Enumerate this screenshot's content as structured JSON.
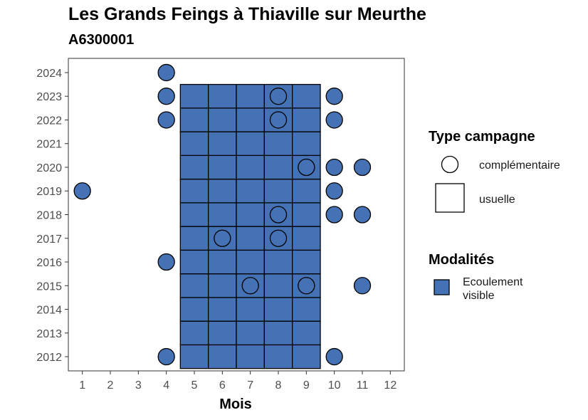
{
  "chart_data": {
    "type": "scatter",
    "title": "Les Grands Feings à Thiaville sur Meurthe",
    "subtitle": "A6300001",
    "xlabel": "Mois",
    "ylabel": "",
    "x_ticks": [
      1,
      2,
      3,
      4,
      5,
      6,
      7,
      8,
      9,
      10,
      11,
      12
    ],
    "y_ticks": [
      2012,
      2013,
      2014,
      2015,
      2016,
      2017,
      2018,
      2019,
      2020,
      2021,
      2022,
      2023,
      2024
    ],
    "xlim": [
      0.5,
      12.5
    ],
    "ylim": [
      2011.4,
      2024.6
    ],
    "grid": false,
    "fill_color": "#4472B4",
    "legends": [
      {
        "title": "Type campagne",
        "entries": [
          {
            "label": "complémentaire",
            "shape": "circle"
          },
          {
            "label": "usuelle",
            "shape": "square"
          }
        ]
      },
      {
        "title": "Modalités",
        "entries": [
          {
            "label": "Ecoulement visible",
            "label_lines": [
              "Ecoulement",
              "visible"
            ],
            "shape": "square",
            "color": "#4472B4"
          }
        ]
      }
    ],
    "legend_position": "right",
    "series": [
      {
        "name": "usuelle",
        "shape": "square",
        "modalite": "Ecoulement visible",
        "x_range": [
          5,
          9
        ],
        "y_range": [
          2012,
          2023
        ]
      },
      {
        "name": "complémentaire",
        "shape": "circle",
        "points": [
          {
            "x": 4,
            "y": 2024,
            "filled": true
          },
          {
            "x": 4,
            "y": 2023,
            "filled": true
          },
          {
            "x": 8,
            "y": 2023,
            "filled": false
          },
          {
            "x": 10,
            "y": 2023,
            "filled": true
          },
          {
            "x": 4,
            "y": 2022,
            "filled": true
          },
          {
            "x": 8,
            "y": 2022,
            "filled": false
          },
          {
            "x": 10,
            "y": 2022,
            "filled": true
          },
          {
            "x": 9,
            "y": 2020,
            "filled": false
          },
          {
            "x": 10,
            "y": 2020,
            "filled": true
          },
          {
            "x": 11,
            "y": 2020,
            "filled": true
          },
          {
            "x": 1,
            "y": 2019,
            "filled": true
          },
          {
            "x": 10,
            "y": 2019,
            "filled": true
          },
          {
            "x": 8,
            "y": 2018,
            "filled": false
          },
          {
            "x": 10,
            "y": 2018,
            "filled": true
          },
          {
            "x": 11,
            "y": 2018,
            "filled": true
          },
          {
            "x": 6,
            "y": 2017,
            "filled": false
          },
          {
            "x": 8,
            "y": 2017,
            "filled": false
          },
          {
            "x": 4,
            "y": 2016,
            "filled": true
          },
          {
            "x": 7,
            "y": 2015,
            "filled": false
          },
          {
            "x": 9,
            "y": 2015,
            "filled": false
          },
          {
            "x": 11,
            "y": 2015,
            "filled": true
          },
          {
            "x": 4,
            "y": 2012,
            "filled": true
          },
          {
            "x": 10,
            "y": 2012,
            "filled": true
          }
        ]
      }
    ]
  }
}
